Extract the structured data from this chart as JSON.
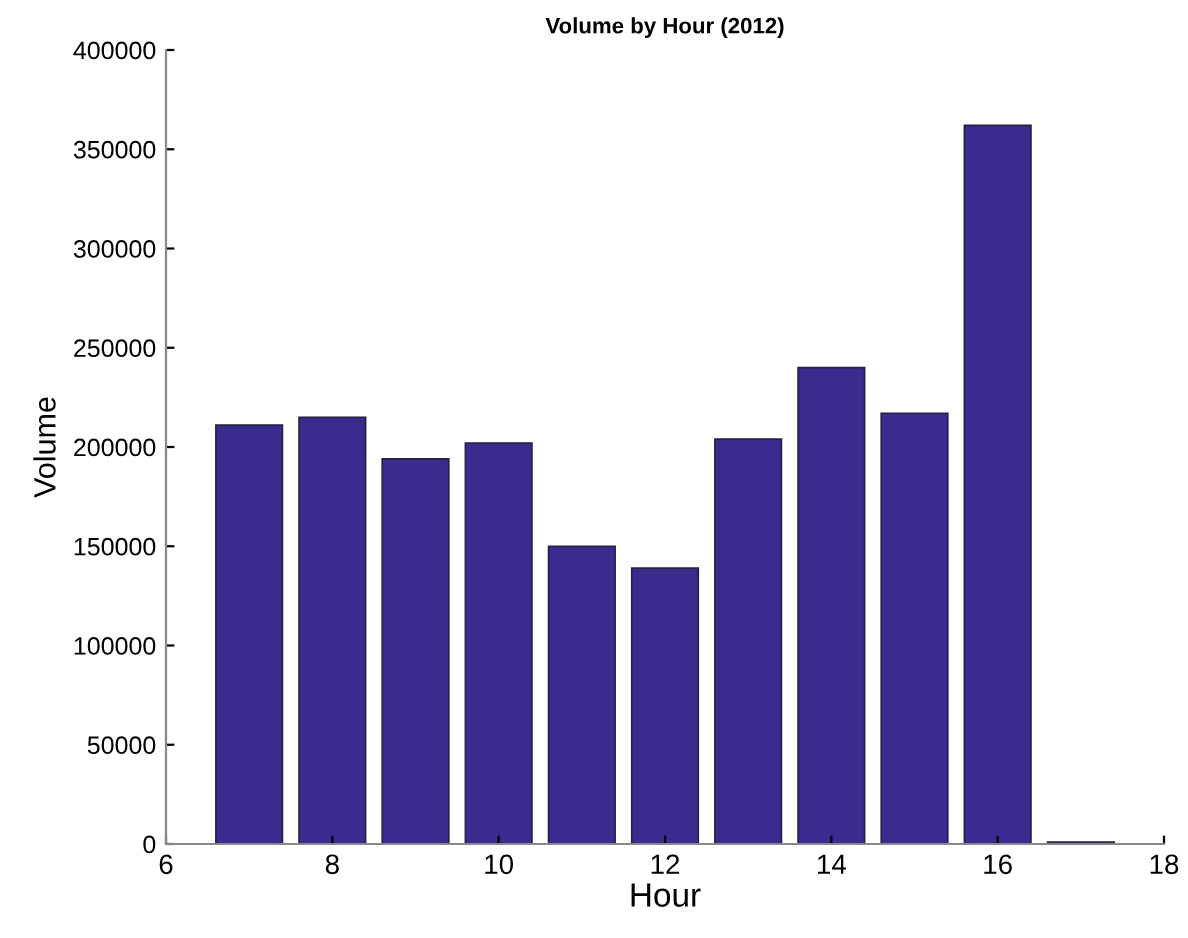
{
  "chart_data": {
    "type": "bar",
    "title": "Volume by Hour (2012)",
    "xlabel": "Hour",
    "ylabel": "Volume",
    "x": [
      7,
      8,
      9,
      10,
      11,
      12,
      13,
      14,
      15,
      16,
      17
    ],
    "values": [
      211000,
      215000,
      194000,
      202000,
      150000,
      139000,
      204000,
      240000,
      217000,
      362000,
      1000
    ],
    "color": "#3a2b8e",
    "xlim": [
      6,
      18
    ],
    "xticks": [
      6,
      8,
      10,
      12,
      14,
      16,
      18
    ],
    "ylim": [
      0,
      400000
    ],
    "yticks": [
      0,
      50000,
      100000,
      150000,
      200000,
      250000,
      300000,
      350000,
      400000
    ],
    "grid": false,
    "legend": false
  }
}
